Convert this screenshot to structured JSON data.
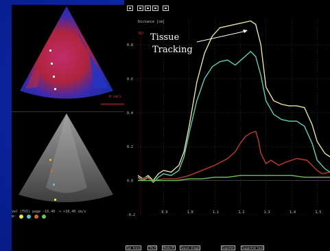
{
  "annotation": {
    "line1": "Tissue",
    "line2": "Tracking"
  },
  "chart": {
    "y_unit_label": "Distance [cm]",
    "y_ticks": [
      "0.8",
      "0.6",
      "0.4",
      "0.2",
      "0.0",
      "-0.2"
    ],
    "x_ticks": [
      "0.9",
      "1.0",
      "1.1",
      "1.2",
      "1.3",
      "1.4",
      "1.5"
    ],
    "red_marker": "ED"
  },
  "chart_data": {
    "type": "line",
    "title": "",
    "xlabel": "",
    "ylabel": "Distance [cm]",
    "xlim": [
      0.8,
      1.55
    ],
    "ylim": [
      -0.2,
      0.95
    ],
    "series": [
      {
        "color": "#e8e6a0",
        "x": [
          0.8,
          0.82,
          0.84,
          0.86,
          0.88,
          0.9,
          0.93,
          0.96,
          0.98,
          1.0,
          1.03,
          1.06,
          1.09,
          1.12,
          1.15,
          1.18,
          1.21,
          1.24,
          1.26,
          1.28,
          1.3,
          1.33,
          1.36,
          1.39,
          1.42,
          1.45,
          1.48,
          1.5,
          1.53,
          1.55
        ],
        "values": [
          0.03,
          0.01,
          0.03,
          0.0,
          0.04,
          0.06,
          0.05,
          0.09,
          0.17,
          0.32,
          0.58,
          0.75,
          0.85,
          0.9,
          0.91,
          0.92,
          0.93,
          0.94,
          0.92,
          0.8,
          0.55,
          0.47,
          0.45,
          0.44,
          0.44,
          0.43,
          0.33,
          0.23,
          0.16,
          0.14
        ]
      },
      {
        "color": "#5fd1b9",
        "x": [
          0.8,
          0.82,
          0.84,
          0.86,
          0.88,
          0.9,
          0.93,
          0.96,
          0.98,
          1.0,
          1.03,
          1.06,
          1.09,
          1.12,
          1.15,
          1.18,
          1.21,
          1.24,
          1.26,
          1.28,
          1.3,
          1.33,
          1.36,
          1.39,
          1.42,
          1.45,
          1.48,
          1.5,
          1.53,
          1.55
        ],
        "values": [
          0.02,
          0.0,
          0.02,
          -0.01,
          0.02,
          0.04,
          0.03,
          0.06,
          0.14,
          0.28,
          0.47,
          0.6,
          0.67,
          0.7,
          0.71,
          0.68,
          0.72,
          0.76,
          0.73,
          0.62,
          0.47,
          0.39,
          0.36,
          0.35,
          0.35,
          0.32,
          0.22,
          0.12,
          0.07,
          0.05
        ]
      },
      {
        "color": "#c43a2a",
        "x": [
          0.8,
          0.83,
          0.86,
          0.9,
          0.95,
          1.0,
          1.05,
          1.1,
          1.15,
          1.18,
          1.2,
          1.22,
          1.24,
          1.26,
          1.27,
          1.28,
          1.3,
          1.32,
          1.35,
          1.38,
          1.42,
          1.46,
          1.5,
          1.52,
          1.55
        ],
        "values": [
          0.0,
          0.02,
          0.0,
          0.01,
          0.01,
          0.03,
          0.06,
          0.09,
          0.13,
          0.17,
          0.22,
          0.26,
          0.28,
          0.29,
          0.24,
          0.16,
          0.1,
          0.12,
          0.09,
          0.11,
          0.13,
          0.12,
          0.06,
          0.04,
          0.05
        ]
      },
      {
        "color": "#6dc45a",
        "x": [
          0.8,
          0.85,
          0.9,
          0.95,
          1.0,
          1.05,
          1.1,
          1.15,
          1.2,
          1.25,
          1.3,
          1.35,
          1.4,
          1.45,
          1.5,
          1.55
        ],
        "values": [
          0.0,
          0.0,
          0.0,
          0.0,
          0.01,
          0.01,
          0.02,
          0.02,
          0.03,
          0.03,
          0.03,
          0.03,
          0.03,
          0.02,
          0.02,
          0.02
        ]
      }
    ]
  },
  "bottom_buttons": [
    "Spl. trans",
    "TACA",
    "Mode M",
    "Sauve image",
    "Exporter",
    "Supprimer tout"
  ],
  "status": {
    "line1": "vel (TVI) page -16.40 -> +16.40 cm/s",
    "line2": "m:"
  },
  "doppler_scale": "0 cm/s"
}
